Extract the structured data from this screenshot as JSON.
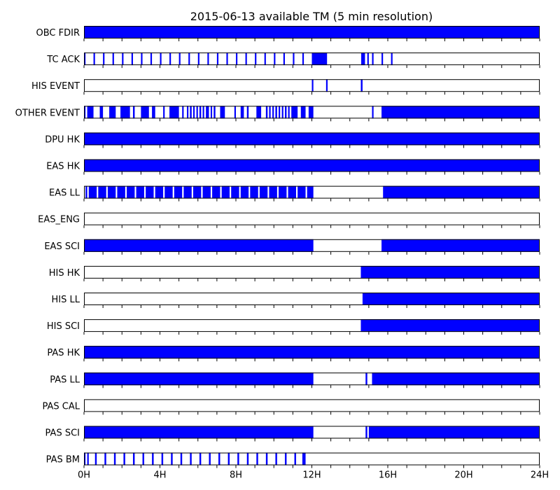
{
  "chart_data": {
    "type": "timeline",
    "title": "2015-06-13 available TM (5 min resolution)",
    "x_unit": "hours",
    "xlim": [
      0,
      24
    ],
    "x_ticks": [
      0,
      4,
      8,
      12,
      16,
      20,
      24
    ],
    "x_tick_labels": [
      "0H",
      "4H",
      "8H",
      "12H",
      "16H",
      "20H",
      "24H"
    ],
    "grid": false,
    "colors": {
      "available": "#0000ff",
      "unavailable": "#ffffff",
      "frame": "#000000"
    },
    "rows": [
      {
        "name": "OBC FDIR",
        "segments": [
          [
            0,
            24
          ]
        ]
      },
      {
        "name": "TC ACK",
        "segments": [
          [
            0.0,
            0.08
          ],
          [
            0.5,
            0.58
          ],
          [
            1.0,
            1.08
          ],
          [
            1.5,
            1.58
          ],
          [
            2.0,
            2.08
          ],
          [
            2.5,
            2.58
          ],
          [
            3.0,
            3.08
          ],
          [
            3.5,
            3.58
          ],
          [
            4.0,
            4.08
          ],
          [
            4.5,
            4.58
          ],
          [
            5.0,
            5.08
          ],
          [
            5.5,
            5.58
          ],
          [
            6.0,
            6.08
          ],
          [
            6.5,
            6.58
          ],
          [
            7.0,
            7.08
          ],
          [
            7.5,
            7.58
          ],
          [
            8.0,
            8.08
          ],
          [
            8.5,
            8.58
          ],
          [
            9.0,
            9.08
          ],
          [
            9.5,
            9.58
          ],
          [
            10.0,
            10.08
          ],
          [
            10.5,
            10.58
          ],
          [
            11.0,
            11.08
          ],
          [
            11.5,
            11.58
          ],
          [
            12.0,
            12.8
          ],
          [
            14.6,
            14.8
          ],
          [
            14.92,
            15.0
          ],
          [
            15.17,
            15.25
          ],
          [
            15.67,
            15.75
          ],
          [
            16.17,
            16.25
          ]
        ]
      },
      {
        "name": "HIS EVENT",
        "segments": [
          [
            12.0,
            12.08
          ],
          [
            12.75,
            12.83
          ],
          [
            14.58,
            14.67
          ]
        ]
      },
      {
        "name": "OTHER EVENT",
        "segments": [
          [
            0.0,
            0.08
          ],
          [
            0.17,
            0.5
          ],
          [
            0.83,
            1.0
          ],
          [
            1.33,
            1.67
          ],
          [
            1.92,
            2.42
          ],
          [
            2.58,
            2.67
          ],
          [
            3.0,
            3.42
          ],
          [
            3.58,
            3.75
          ],
          [
            4.17,
            4.25
          ],
          [
            4.5,
            5.0
          ],
          [
            5.17,
            5.25
          ],
          [
            5.42,
            5.5
          ],
          [
            5.58,
            5.67
          ],
          [
            5.75,
            5.83
          ],
          [
            5.92,
            6.0
          ],
          [
            6.08,
            6.17
          ],
          [
            6.25,
            6.33
          ],
          [
            6.42,
            6.58
          ],
          [
            6.67,
            6.75
          ],
          [
            6.83,
            6.92
          ],
          [
            7.17,
            7.42
          ],
          [
            7.92,
            8.0
          ],
          [
            8.25,
            8.42
          ],
          [
            8.58,
            8.67
          ],
          [
            9.08,
            9.33
          ],
          [
            9.58,
            9.67
          ],
          [
            9.75,
            9.83
          ],
          [
            9.92,
            10.0
          ],
          [
            10.08,
            10.17
          ],
          [
            10.25,
            10.33
          ],
          [
            10.42,
            10.5
          ],
          [
            10.58,
            10.67
          ],
          [
            10.75,
            10.83
          ],
          [
            10.92,
            11.25
          ],
          [
            11.42,
            11.67
          ],
          [
            11.83,
            12.0
          ],
          [
            12.0,
            12.08
          ],
          [
            15.17,
            15.25
          ],
          [
            15.67,
            24.0
          ]
        ]
      },
      {
        "name": "DPU HK",
        "segments": [
          [
            0,
            24
          ]
        ]
      },
      {
        "name": "EAS HK",
        "segments": [
          [
            0,
            24
          ]
        ]
      },
      {
        "name": "EAS LL",
        "segments": [
          [
            0.08,
            0.17
          ],
          [
            0.25,
            0.67
          ],
          [
            0.75,
            1.17
          ],
          [
            1.25,
            1.67
          ],
          [
            1.75,
            2.17
          ],
          [
            2.25,
            2.67
          ],
          [
            2.75,
            3.17
          ],
          [
            3.25,
            3.67
          ],
          [
            3.75,
            4.17
          ],
          [
            4.25,
            4.67
          ],
          [
            4.75,
            5.17
          ],
          [
            5.25,
            5.67
          ],
          [
            5.75,
            6.17
          ],
          [
            6.25,
            6.67
          ],
          [
            6.75,
            7.17
          ],
          [
            7.25,
            7.67
          ],
          [
            7.75,
            8.17
          ],
          [
            8.25,
            8.67
          ],
          [
            8.75,
            9.17
          ],
          [
            9.25,
            9.67
          ],
          [
            9.75,
            10.17
          ],
          [
            10.25,
            10.67
          ],
          [
            10.75,
            11.17
          ],
          [
            11.25,
            11.67
          ],
          [
            11.75,
            12.08
          ],
          [
            15.75,
            24.0
          ]
        ]
      },
      {
        "name": "EAS_ENG",
        "segments": []
      },
      {
        "name": "EAS SCI",
        "segments": [
          [
            0,
            12.08
          ],
          [
            15.67,
            24
          ]
        ]
      },
      {
        "name": "HIS HK",
        "segments": [
          [
            14.58,
            24
          ]
        ]
      },
      {
        "name": "HIS LL",
        "segments": [
          [
            14.67,
            24
          ]
        ]
      },
      {
        "name": "HIS SCI",
        "segments": [
          [
            14.58,
            24
          ]
        ]
      },
      {
        "name": "PAS HK",
        "segments": [
          [
            0,
            24
          ]
        ]
      },
      {
        "name": "PAS LL",
        "segments": [
          [
            0,
            12.08
          ],
          [
            14.83,
            14.92
          ],
          [
            15.17,
            24
          ]
        ]
      },
      {
        "name": "PAS CAL",
        "segments": []
      },
      {
        "name": "PAS SCI",
        "segments": [
          [
            0,
            12.08
          ],
          [
            14.83,
            14.92
          ],
          [
            15.0,
            24
          ]
        ]
      },
      {
        "name": "PAS BM",
        "segments": [
          [
            0.0,
            0.08
          ],
          [
            0.17,
            0.25
          ],
          [
            0.58,
            0.67
          ],
          [
            1.08,
            1.17
          ],
          [
            1.58,
            1.67
          ],
          [
            2.08,
            2.17
          ],
          [
            2.58,
            2.67
          ],
          [
            3.08,
            3.17
          ],
          [
            3.58,
            3.67
          ],
          [
            4.08,
            4.17
          ],
          [
            4.58,
            4.67
          ],
          [
            5.08,
            5.17
          ],
          [
            5.58,
            5.67
          ],
          [
            6.08,
            6.17
          ],
          [
            6.58,
            6.67
          ],
          [
            7.08,
            7.17
          ],
          [
            7.58,
            7.67
          ],
          [
            8.08,
            8.17
          ],
          [
            8.58,
            8.67
          ],
          [
            9.08,
            9.17
          ],
          [
            9.58,
            9.67
          ],
          [
            10.08,
            10.17
          ],
          [
            10.58,
            10.67
          ],
          [
            11.08,
            11.17
          ],
          [
            11.5,
            11.67
          ]
        ]
      }
    ]
  }
}
